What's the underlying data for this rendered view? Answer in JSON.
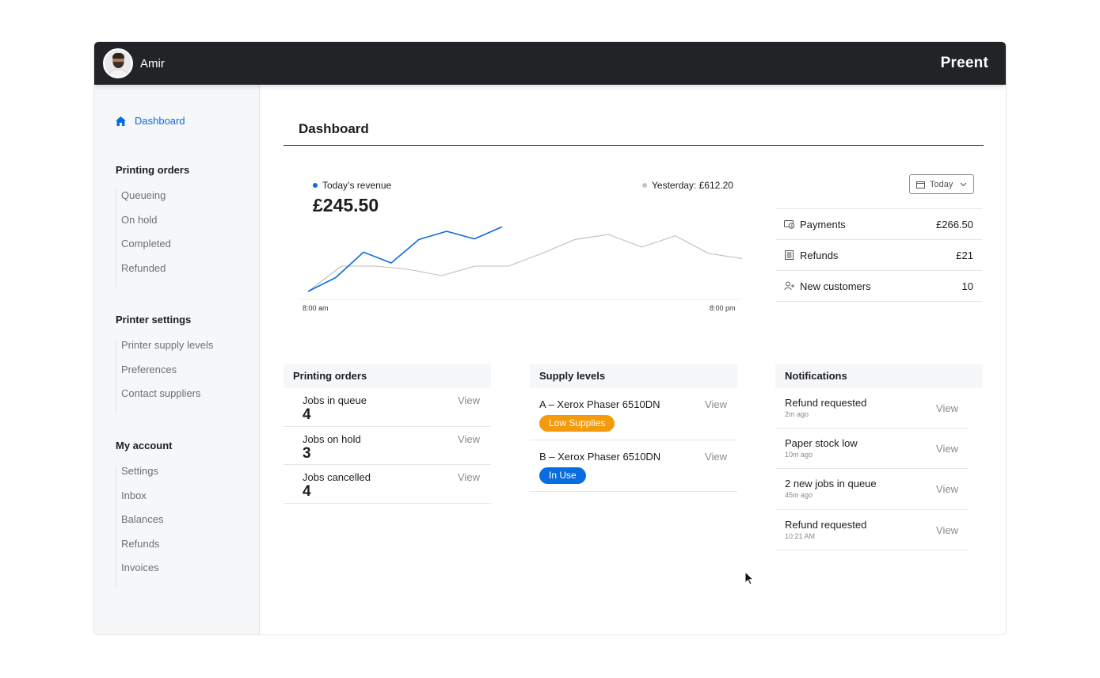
{
  "header": {
    "username": "Amir",
    "brand": "Preent"
  },
  "sidebar": {
    "dashboard_label": "Dashboard",
    "sections": [
      {
        "title": "Printing orders",
        "items": [
          "Queueing",
          "On hold",
          "Completed",
          "Refunded"
        ]
      },
      {
        "title": "Printer settings",
        "items": [
          "Printer supply levels",
          "Preferences",
          "Contact suppliers"
        ]
      },
      {
        "title": "My account",
        "items": [
          "Settings",
          "Inbox",
          "Balances",
          "Refunds",
          "Invoices"
        ]
      }
    ]
  },
  "main": {
    "title": "Dashboard",
    "revenue": {
      "today_label": "Today’s revenue",
      "today_value": "£245.50",
      "yesterday_label": "Yesterday: £612.20",
      "range_label": "Today"
    },
    "stats": [
      {
        "label": "Payments",
        "value": "£266.50",
        "icon": "payment-icon"
      },
      {
        "label": "Refunds",
        "value": "£21",
        "icon": "receipt-icon"
      },
      {
        "label": "New customers",
        "value": "10",
        "icon": "add-user-icon"
      }
    ],
    "printing_orders": {
      "title": "Printing orders",
      "view_label": "View",
      "rows": [
        {
          "label": "Jobs in queue",
          "value": "4"
        },
        {
          "label": "Jobs on hold",
          "value": "3"
        },
        {
          "label": "Jobs cancelled",
          "value": "4"
        }
      ]
    },
    "supply_levels": {
      "title": "Supply levels",
      "view_label": "View",
      "rows": [
        {
          "label": "A –  Xerox Phaser 6510DN",
          "status": "Low Supplies",
          "status_color": "#f59a0c"
        },
        {
          "label": "B –  Xerox Phaser 6510DN",
          "status": "In Use",
          "status_color": "#0a6ddf"
        }
      ]
    },
    "notifications": {
      "title": "Notifications",
      "view_label": "View",
      "rows": [
        {
          "label": "Refund requested",
          "time": "2m ago"
        },
        {
          "label": "Paper stock low",
          "time": "10m ago"
        },
        {
          "label": "2 new jobs in queue",
          "time": "45m ago"
        },
        {
          "label": "Refund requested",
          "time": "10:21  AM"
        }
      ]
    }
  },
  "chart_data": {
    "type": "line",
    "x_start_label": "8:00 am",
    "x_end_label": "8:00 pm",
    "series": [
      {
        "name": "Today’s revenue",
        "color": "#0a6ddf",
        "values": [
          0,
          22,
          62,
          45,
          82,
          95,
          83,
          102
        ]
      },
      {
        "name": "Yesterday: £612.20",
        "color": "#bdbdbd",
        "values": [
          0,
          40,
          40,
          35,
          25,
          40,
          40,
          60,
          82,
          90,
          70,
          88,
          60,
          52
        ]
      }
    ],
    "colors": {
      "accent": "#0a6ddf",
      "warning": "#f59a0c",
      "muted": "#bdbdbd"
    }
  }
}
